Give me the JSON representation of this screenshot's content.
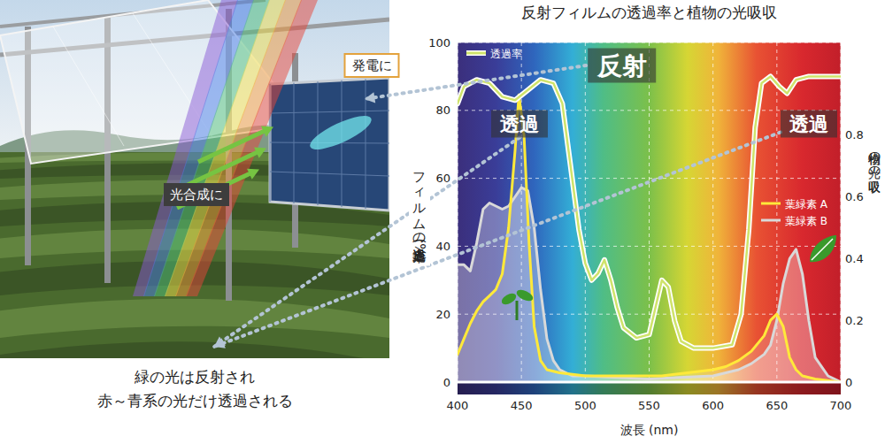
{
  "photo": {
    "labels": {
      "power": "発電に",
      "photosynthesis": "光合成に"
    },
    "caption": [
      "緑の光は反射され",
      "赤～青系の光だけ透過される"
    ]
  },
  "chart_data": {
    "type": "line",
    "title": "反射フィルムの透過率と植物の光吸収",
    "x_label": "波長 (nm)",
    "y_label": "フィルムの光透過率(%)",
    "y2_label": "植物の光の吸収",
    "annotations": [
      "反射",
      "透過",
      "透過"
    ],
    "xlim": [
      400,
      700
    ],
    "xticks": [
      400,
      450,
      500,
      550,
      600,
      650,
      700
    ],
    "ylim": [
      0,
      100
    ],
    "yticks": [
      0,
      20,
      40,
      60,
      80,
      100
    ],
    "y2lim": [
      0,
      1.1
    ],
    "y2ticks": [
      0,
      0.2,
      0.4,
      0.6,
      0.8
    ],
    "grid": true,
    "legend": "right",
    "series": [
      {
        "name": "透過率",
        "color": "#cfe36a",
        "x": [
          400,
          405,
          415,
          425,
          435,
          445,
          455,
          465,
          475,
          482,
          488,
          495,
          500,
          505,
          510,
          515,
          520,
          525,
          530,
          540,
          550,
          555,
          560,
          565,
          570,
          575,
          585,
          600,
          615,
          622,
          628,
          633,
          638,
          645,
          652,
          658,
          665,
          675,
          690,
          700
        ],
        "values": [
          82,
          87,
          89,
          88,
          84,
          83,
          86,
          89,
          88,
          82,
          65,
          45,
          35,
          30,
          32,
          36,
          30,
          22,
          16,
          13,
          14,
          22,
          30,
          28,
          18,
          12,
          10,
          10,
          11,
          20,
          45,
          75,
          88,
          90,
          87,
          85,
          89,
          90,
          90,
          90
        ]
      },
      {
        "name": "葉緑素 A",
        "color": "#ffe93a",
        "axis": "y2",
        "x": [
          400,
          405,
          410,
          415,
          420,
          425,
          430,
          435,
          440,
          445,
          448,
          452,
          456,
          460,
          465,
          470,
          480,
          500,
          520,
          540,
          560,
          580,
          600,
          610,
          620,
          630,
          640,
          645,
          650,
          655,
          660,
          665,
          670,
          680,
          700
        ],
        "values": [
          0.09,
          0.14,
          0.19,
          0.23,
          0.26,
          0.28,
          0.3,
          0.35,
          0.5,
          0.75,
          0.93,
          0.8,
          0.45,
          0.18,
          0.07,
          0.04,
          0.03,
          0.02,
          0.02,
          0.02,
          0.02,
          0.03,
          0.04,
          0.05,
          0.07,
          0.1,
          0.15,
          0.2,
          0.22,
          0.18,
          0.08,
          0.04,
          0.02,
          0.01,
          0
        ]
      },
      {
        "name": "葉緑素 B",
        "color": "#d9d9d9",
        "axis": "y2",
        "x": [
          400,
          405,
          410,
          415,
          420,
          425,
          430,
          435,
          440,
          445,
          450,
          455,
          460,
          465,
          470,
          475,
          480,
          490,
          500,
          550,
          600,
          620,
          630,
          640,
          645,
          650,
          655,
          660,
          665,
          670,
          675,
          680,
          690,
          700
        ],
        "values": [
          0.38,
          0.38,
          0.36,
          0.45,
          0.56,
          0.58,
          0.57,
          0.56,
          0.57,
          0.6,
          0.63,
          0.62,
          0.5,
          0.3,
          0.14,
          0.07,
          0.04,
          0.02,
          0.02,
          0.01,
          0.02,
          0.04,
          0.06,
          0.09,
          0.12,
          0.2,
          0.32,
          0.4,
          0.43,
          0.35,
          0.2,
          0.08,
          0.02,
          0
        ]
      }
    ]
  }
}
